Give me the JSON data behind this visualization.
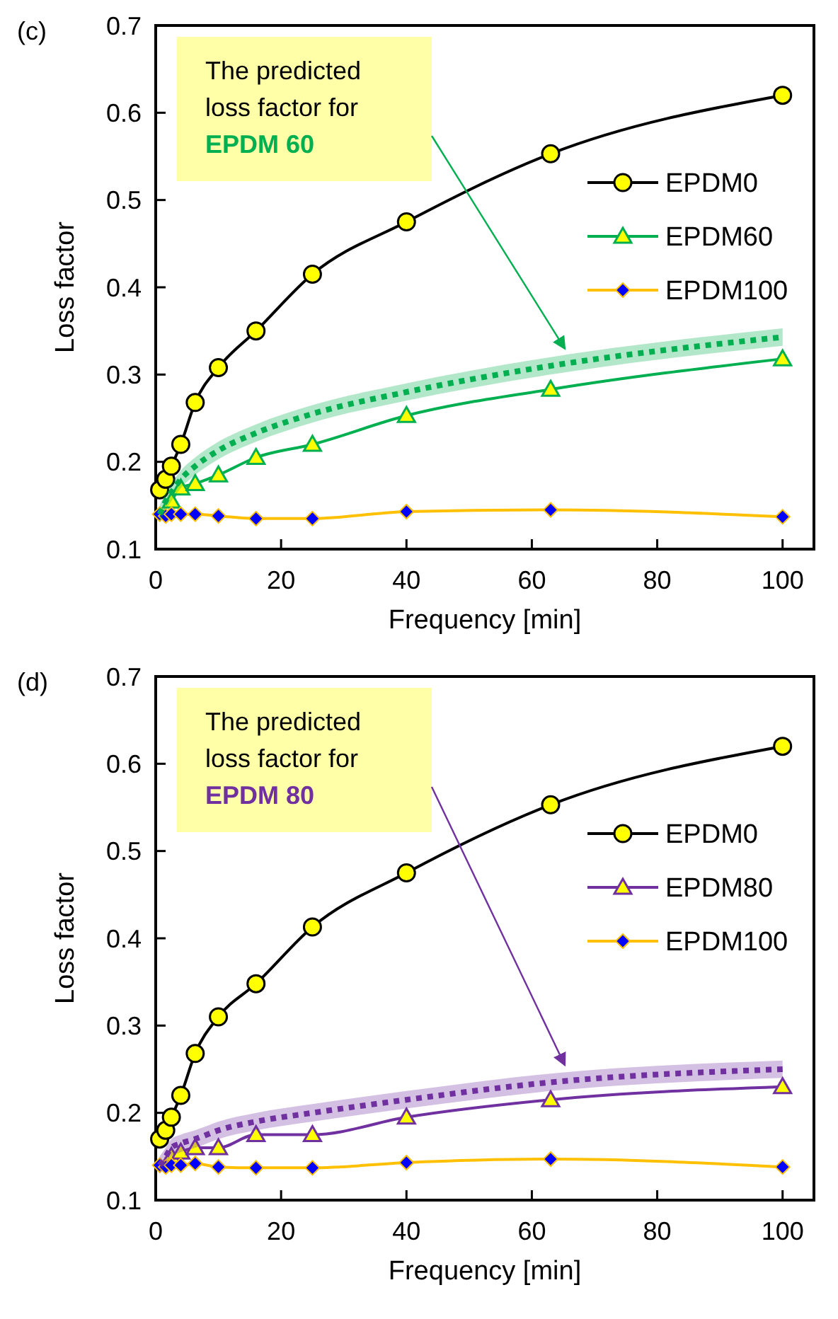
{
  "chart_data": [
    {
      "type": "line",
      "title": "(c)",
      "xlabel": "Frequency [min]",
      "ylabel": "Loss factor",
      "xlim": [
        0,
        105
      ],
      "xticks": [
        0,
        20,
        40,
        60,
        80,
        100
      ],
      "ylim": [
        0.1,
        0.7
      ],
      "yticks": [
        0.1,
        0.2,
        0.3,
        0.4,
        0.5,
        0.6,
        0.7
      ],
      "x": [
        0.63,
        1.6,
        2.5,
        4,
        6.3,
        10,
        16,
        25,
        40,
        63,
        100
      ],
      "legend": "right",
      "grid": false,
      "annotations": [
        "The predicted loss factor for EPDM 60"
      ],
      "series": [
        {
          "name": "EPDM0",
          "color": "#000000",
          "marker": "circle",
          "values": [
            0.168,
            0.18,
            0.195,
            0.22,
            0.268,
            0.308,
            0.35,
            0.415,
            0.475,
            0.553,
            0.62
          ]
        },
        {
          "name": "EPDM60",
          "color": "#00b050",
          "marker": "triangle",
          "values": [
            null,
            null,
            0.155,
            0.17,
            0.175,
            0.185,
            0.205,
            0.22,
            0.253,
            0.283,
            0.318
          ]
        },
        {
          "name": "EPDM100",
          "color": "#ffc000",
          "marker": "diamond",
          "values": [
            0.14,
            0.138,
            0.14,
            0.14,
            0.14,
            0.138,
            0.135,
            0.135,
            0.143,
            0.145,
            0.137
          ]
        },
        {
          "color": "#00b050",
          "marker": "none",
          "line_style": "dotted",
          "values": [
            0.14,
            0.155,
            0.165,
            0.18,
            0.195,
            0.213,
            0.233,
            0.255,
            0.28,
            0.31,
            0.343
          ],
          "lower": [
            0.13,
            0.145,
            0.155,
            0.17,
            0.185,
            0.203,
            0.223,
            0.245,
            0.27,
            0.3,
            0.333
          ],
          "upper": [
            0.15,
            0.165,
            0.175,
            0.19,
            0.205,
            0.223,
            0.243,
            0.265,
            0.29,
            0.32,
            0.353
          ]
        }
      ]
    },
    {
      "type": "line",
      "title": "(d)",
      "xlabel": "Frequency [min]",
      "ylabel": "Loss factor",
      "xlim": [
        0,
        105
      ],
      "xticks": [
        0,
        20,
        40,
        60,
        80,
        100
      ],
      "ylim": [
        0.1,
        0.7
      ],
      "yticks": [
        0.1,
        0.2,
        0.3,
        0.4,
        0.5,
        0.6,
        0.7
      ],
      "x": [
        0.63,
        1.6,
        2.5,
        4,
        6.3,
        10,
        16,
        25,
        40,
        63,
        100
      ],
      "legend": "right",
      "grid": false,
      "annotations": [
        "The predicted loss factor for EPDM 80"
      ],
      "series": [
        {
          "name": "EPDM0",
          "color": "#000000",
          "marker": "circle",
          "values": [
            0.17,
            0.18,
            0.195,
            0.22,
            0.268,
            0.31,
            0.348,
            0.413,
            0.475,
            0.553,
            0.62
          ]
        },
        {
          "name": "EPDM80",
          "color": "#7030a0",
          "marker": "triangle",
          "values": [
            null,
            null,
            0.15,
            0.155,
            0.16,
            0.16,
            0.175,
            0.175,
            0.195,
            0.215,
            0.23
          ]
        },
        {
          "name": "EPDM100",
          "color": "#ffc000",
          "marker": "diamond",
          "values": [
            0.14,
            0.138,
            0.14,
            0.14,
            0.142,
            0.138,
            0.137,
            0.137,
            0.143,
            0.147,
            0.138
          ]
        },
        {
          "color": "#7030a0",
          "marker": "none",
          "line_style": "dotted",
          "values": [
            0.14,
            0.15,
            0.16,
            0.165,
            0.17,
            0.18,
            0.19,
            0.2,
            0.215,
            0.235,
            0.25
          ],
          "lower": [
            0.13,
            0.14,
            0.15,
            0.155,
            0.16,
            0.17,
            0.18,
            0.19,
            0.205,
            0.225,
            0.24
          ],
          "upper": [
            0.15,
            0.16,
            0.17,
            0.175,
            0.18,
            0.19,
            0.2,
            0.21,
            0.225,
            0.245,
            0.26
          ]
        }
      ]
    }
  ]
}
